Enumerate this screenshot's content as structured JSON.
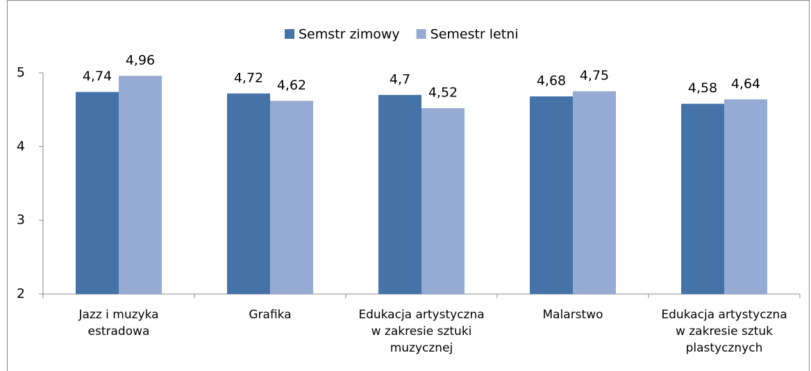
{
  "chart_data": {
    "type": "bar",
    "categories": [
      "Jazz i muzyka estradowa",
      "Grafika",
      "Edukacja artystyczna w zakresie sztuki muzycznej",
      "Malarstwo",
      "Edukacja artystyczna w zakresie sztuk plastycznych"
    ],
    "series": [
      {
        "name": "Semstr zimowy",
        "color": "#4572a7",
        "values": [
          4.74,
          4.72,
          4.7,
          4.68,
          4.58
        ],
        "value_labels": [
          "4,74",
          "4,72",
          "4,7",
          "4,68",
          "4,58"
        ]
      },
      {
        "name": "Semestr letni",
        "color": "#95abd3",
        "values": [
          4.96,
          4.62,
          4.52,
          4.75,
          4.64
        ],
        "value_labels": [
          "4,96",
          "4,62",
          "4,52",
          "4,75",
          "4,64"
        ]
      }
    ],
    "ylim": [
      2,
      5
    ],
    "yticks": [
      2,
      3,
      4,
      5
    ],
    "grid": false,
    "legend": "top"
  }
}
